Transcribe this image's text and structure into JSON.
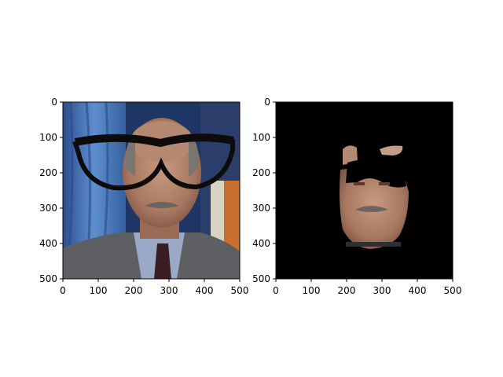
{
  "chart_data": [
    {
      "type": "image",
      "panel": "left",
      "content": "photo of a man in a grey suit and tie with drawn black eyeglasses over his face, flags in the background",
      "xlim": [
        0,
        500
      ],
      "ylim": [
        500,
        0
      ],
      "xticks": [
        0,
        100,
        200,
        300,
        400,
        500
      ],
      "yticks": [
        0,
        100,
        200,
        300,
        400,
        500
      ],
      "xtick_labels": [
        "0",
        "100",
        "200",
        "300",
        "400",
        "500"
      ],
      "ytick_labels": [
        "0",
        "100",
        "200",
        "300",
        "400",
        "500"
      ]
    },
    {
      "type": "image",
      "panel": "right",
      "content": "face-only masked version of the same photo on a black background, glasses region blacked out",
      "xlim": [
        0,
        500
      ],
      "ylim": [
        500,
        0
      ],
      "xticks": [
        0,
        100,
        200,
        300,
        400,
        500
      ],
      "yticks": [
        0,
        100,
        200,
        300,
        400,
        500
      ],
      "xtick_labels": [
        "0",
        "100",
        "200",
        "300",
        "400",
        "500"
      ],
      "ytick_labels": [
        "0",
        "100",
        "200",
        "300",
        "400",
        "500"
      ]
    }
  ],
  "colors": {
    "flag_blue": "#3f68a8",
    "background_dark": "#1f3564",
    "suit": "#5e5f63",
    "skin": "#b08069",
    "glasses": "#0d0b0b",
    "mask": "#000000"
  }
}
